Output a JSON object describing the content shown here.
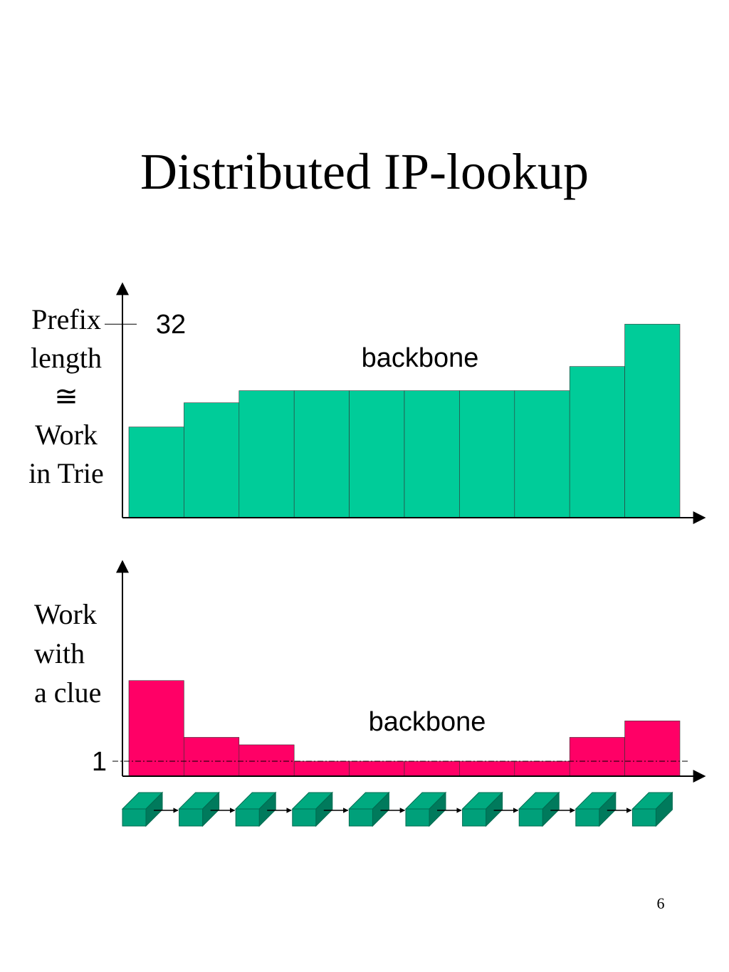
{
  "title": "Distributed IP-lookup",
  "page_number": "6",
  "chart_data": [
    {
      "type": "bar",
      "y_label": [
        "Prefix",
        "length",
        "≅",
        "Work",
        "in Trie"
      ],
      "annotation": "backbone",
      "categories": [
        null,
        null,
        null,
        null,
        null,
        null,
        null,
        null,
        null,
        null
      ],
      "values": [
        15,
        19,
        21,
        21,
        21,
        21,
        21,
        21,
        25,
        32
      ],
      "color": "#00cc99",
      "ylim": [
        0,
        38.5
      ],
      "yticks": [
        32
      ],
      "grid": false
    },
    {
      "type": "bar",
      "y_label": [
        "Work",
        "with",
        "a clue"
      ],
      "annotation": "backbone",
      "categories": [
        null,
        null,
        null,
        null,
        null,
        null,
        null,
        null,
        null,
        null
      ],
      "values": [
        6.4,
        2.6,
        2.1,
        1,
        1,
        1,
        1,
        1,
        2.6,
        3.7
      ],
      "color": "#ff0066",
      "ylim": [
        0,
        14.3
      ],
      "yticks": [
        1
      ],
      "grid": true
    }
  ]
}
